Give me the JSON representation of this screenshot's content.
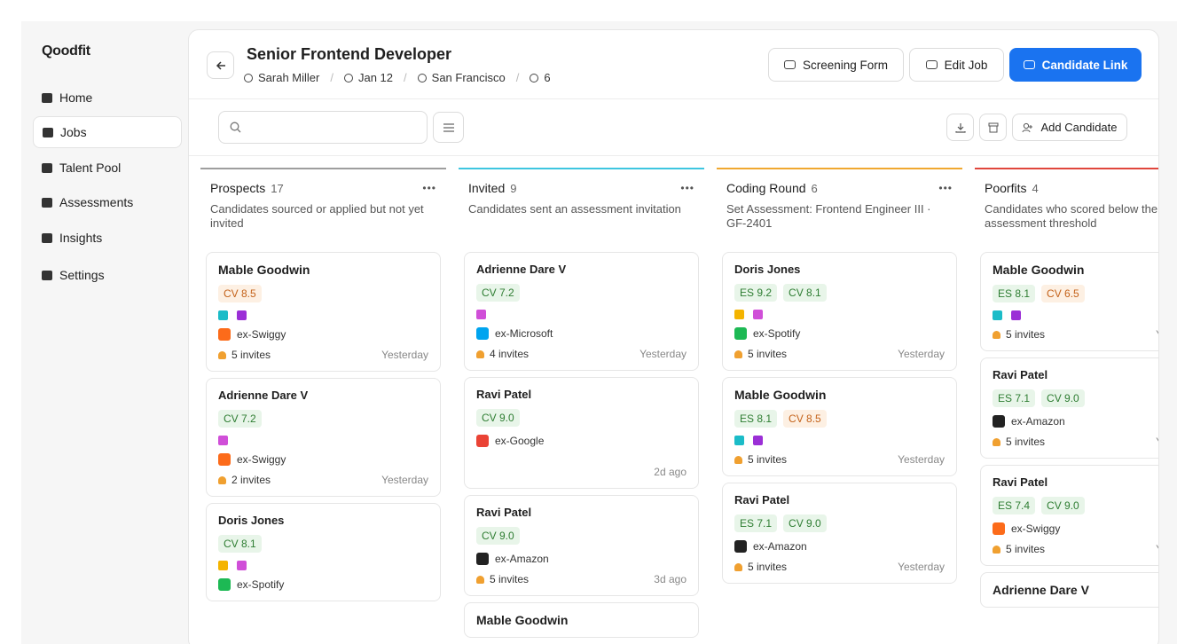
{
  "sidebar": {
    "brand": "Qoodfit",
    "nav": [
      "Home",
      "Jobs",
      "Talent Pool",
      "Assessments",
      "Insights",
      "Settings"
    ],
    "active": 1
  },
  "header": {
    "title": "Senior Frontend Developer",
    "meta": [
      "Sarah Miller",
      "Jan 12",
      "San Francisco",
      "6"
    ],
    "buttons": [
      "Screening Form",
      "Edit Job",
      "Candidate Link"
    ]
  },
  "toolbar": {
    "add_button": "Add Candidate"
  },
  "columns": [
    {
      "name": "Prospects",
      "count": "17",
      "description": "Candidates sourced or applied but not yet invited",
      "color": "#9e9e9e",
      "cards": [
        {
          "name": "Mable Goodwin",
          "scores": [
            {
              "label": "CV 8.5",
              "tone": "orange"
            }
          ],
          "company": "ex-Swiggy",
          "invites": "5 invites",
          "time": "Yesterday"
        },
        {
          "name": "Adrienne Dare V",
          "scores": [
            {
              "label": "CV 7.2",
              "tone": "green"
            }
          ],
          "company": "ex-Swiggy",
          "invites": "2 invites",
          "time": "Yesterday"
        },
        {
          "name": "Doris Jones",
          "scores": [
            {
              "label": "CV 8.1",
              "tone": "green"
            }
          ],
          "company": "ex-Spotify"
        }
      ]
    },
    {
      "name": "Invited",
      "count": "9",
      "description": "Candidates sent an assessment invitation",
      "color": "#3ec6e0",
      "cards": [
        {
          "name": "Adrienne Dare V",
          "scores": [
            {
              "label": "CV 7.2",
              "tone": "green"
            }
          ],
          "company": "ex-Microsoft",
          "invites": "4 invites",
          "time": "Yesterday"
        },
        {
          "name": "Ravi Patel",
          "scores": [
            {
              "label": "CV 9.0",
              "tone": "green"
            }
          ],
          "company": "ex-Google",
          "time": "2d ago"
        },
        {
          "name": "Ravi Patel",
          "scores": [
            {
              "label": "CV 9.0",
              "tone": "green"
            }
          ],
          "company": "ex-Amazon",
          "invites": "5 invites",
          "time": "3d ago"
        },
        {
          "name": "Mable Goodwin"
        }
      ]
    },
    {
      "name": "Coding Round",
      "count": "6",
      "description": "Set Assessment: Frontend Engineer III · GF-2401",
      "color": "#f0a830",
      "cards": [
        {
          "name": "Doris Jones",
          "scores": [
            {
              "label": "ES 9.2",
              "tone": "green"
            },
            {
              "label": "CV 8.1",
              "tone": "green"
            }
          ],
          "company": "ex-Spotify",
          "invites": "5 invites",
          "time": "Yesterday"
        },
        {
          "name": "Mable Goodwin",
          "scores": [
            {
              "label": "ES 8.1",
              "tone": "green"
            },
            {
              "label": "CV 8.5",
              "tone": "orange"
            }
          ],
          "invites": "5 invites",
          "time": "Yesterday"
        },
        {
          "name": "Ravi Patel",
          "scores": [
            {
              "label": "ES 7.1",
              "tone": "green"
            },
            {
              "label": "CV 9.0",
              "tone": "green"
            }
          ],
          "company": "ex-Amazon",
          "invites": "5 invites",
          "time": "Yesterday"
        }
      ]
    },
    {
      "name": "Poorfits",
      "count": "4",
      "description": "Candidates who scored below the assessment threshold",
      "color": "#e0463c",
      "cards": [
        {
          "name": "Mable Goodwin",
          "scores": [
            {
              "label": "ES 8.1",
              "tone": "green"
            },
            {
              "label": "CV 6.5",
              "tone": "orange"
            }
          ],
          "invites": "5 invites",
          "time": "Yesterday"
        },
        {
          "name": "Ravi Patel",
          "scores": [
            {
              "label": "ES 7.1",
              "tone": "green"
            },
            {
              "label": "CV 9.0",
              "tone": "green"
            }
          ],
          "company": "ex-Amazon",
          "invites": "5 invites",
          "time": "Yesterday"
        },
        {
          "name": "Ravi Patel",
          "scores": [
            {
              "label": "ES 7.4",
              "tone": "green"
            },
            {
              "label": "CV 9.0",
              "tone": "green"
            }
          ],
          "company": "ex-Swiggy",
          "invites": "5 invites",
          "time": "Yesterday"
        },
        {
          "name": "Adrienne Dare V"
        }
      ]
    }
  ]
}
